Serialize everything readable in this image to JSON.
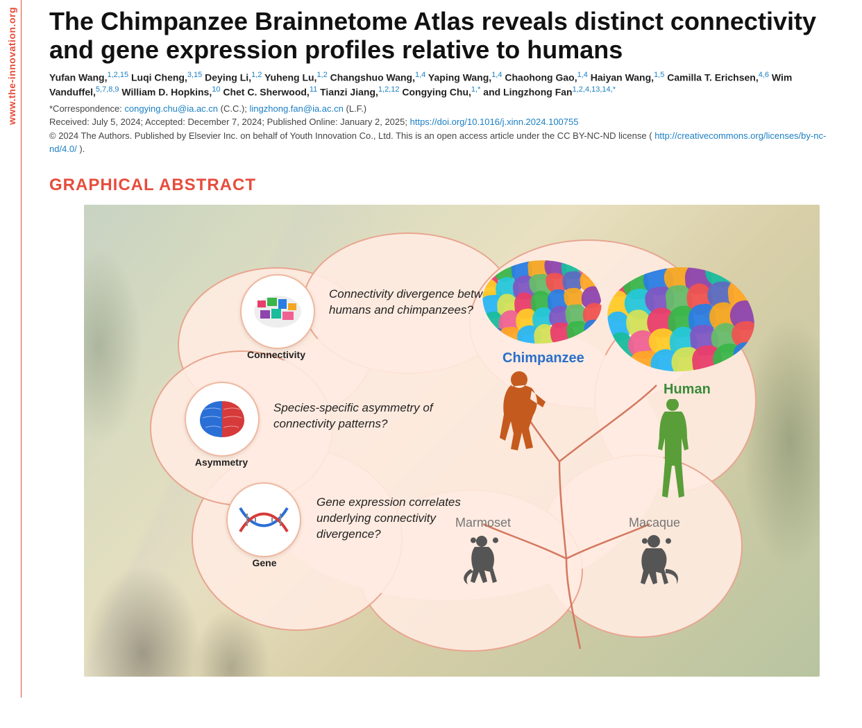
{
  "journal_url": "www.the-innovation.org",
  "title": "The Chimpanzee Brainnetome Atlas reveals distinct connectivity and gene expression profiles relative to humans",
  "authors_html": "Yufan Wang,<sup>1,2,15</sup> Luqi Cheng,<sup>3,15</sup> Deying Li,<sup>1,2</sup> Yuheng Lu,<sup>1,2</sup> Changshuo Wang,<sup>1,4</sup> Yaping Wang,<sup>1,4</sup> Chaohong Gao,<sup>1,4</sup> Haiyan Wang,<sup>1,5</sup> Camilla T. Erichsen,<sup>4,6</sup> Wim Vanduffel,<sup>5,7,8,9</sup> William D. Hopkins,<sup>10</sup> Chet C. Sherwood,<sup>11</sup> Tianzi Jiang,<sup>1,2,12</sup> Congying Chu,<sup>1,*</sup> and Lingzhong Fan<sup>1,2,4,13,14,*</sup>",
  "correspondence_prefix": "*Correspondence: ",
  "correspondence_email1": "congying.chu@ia.ac.cn",
  "correspondence_mid1": " (C.C.); ",
  "correspondence_email2": "lingzhong.fan@ia.ac.cn",
  "correspondence_mid2": " (L.F.)",
  "dates_prefix": "Received: July 5, 2024; Accepted: December 7, 2024; Published Online: January 2, 2025; ",
  "doi": "https://doi.org/10.1016/j.xinn.2024.100755",
  "copyright_prefix": "© 2024 The Authors. Published by Elsevier Inc. on behalf of Youth Innovation Co., Ltd. This is an open access article under the CC BY-NC-ND license (",
  "license_url": "http://creativecommons.org/licenses/by-nc-nd/4.0/",
  "copyright_suffix": ").",
  "section_heading": "GRAPHICAL ABSTRACT",
  "abstract": {
    "icons": {
      "connectivity": {
        "label": "Connectivity",
        "question": "Connectivity divergence between humans and chimpanzees?"
      },
      "asymmetry": {
        "label": "Asymmetry",
        "question": "Species-specific asymmetry of connectivity patterns?"
      },
      "gene": {
        "label": "Gene",
        "question": "Gene expression correlates underlying connectivity divergence?"
      }
    },
    "species": {
      "chimpanzee": "Chimpanzee",
      "human": "Human",
      "marmoset": "Marmoset",
      "macaque": "Macaque"
    },
    "colors": {
      "cloud_fill": "#ffe9df",
      "cloud_border": "#e8a590",
      "tree": "#d47860",
      "chimp_sil": "#c55a1e",
      "human_sil": "#5a9e3a",
      "monkey_sil": "#555555",
      "brain_parcels": [
        "#e83e6b",
        "#3ab54a",
        "#2a7de1",
        "#f5a623",
        "#8e44ad",
        "#1abc9c",
        "#f06292",
        "#ffca28",
        "#26c6da",
        "#7e57c2",
        "#66bb6a",
        "#ef5350",
        "#5c6bc0",
        "#ffa726",
        "#29b6f6",
        "#d4e157"
      ]
    }
  }
}
